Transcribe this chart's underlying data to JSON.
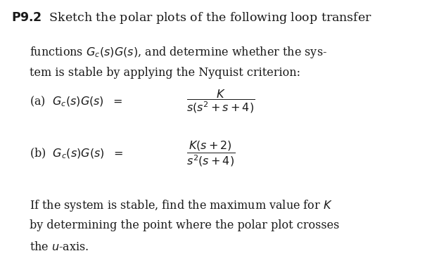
{
  "background_color": "#ffffff",
  "text_color": "#1a1a1a",
  "font_size_title": 12.5,
  "font_size_body": 11.5,
  "title_prefix": "P9.2",
  "title_rest": "  Sketch the polar plots of the following loop transfer",
  "line1": "functions $G_c(s)G(s)$, and determine whether the sys-",
  "line2": "tem is stable by applying the Nyquist criterion:",
  "eq_a_lhs": "(a)  $G_c(s)G(s)$  $=$ ",
  "eq_a_frac": "$\\dfrac{K}{s(s^2 + s + 4)}$",
  "eq_b_lhs": "(b)  $G_c(s)G(s)$  $=$ ",
  "eq_b_frac": "$\\dfrac{K(s + 2)}{s^2(s + 4)}$",
  "footer1": "If the system is stable, find the maximum value for $K$",
  "footer2": "by determining the point where the polar plot crosses",
  "footer3": "the $u$-axis."
}
